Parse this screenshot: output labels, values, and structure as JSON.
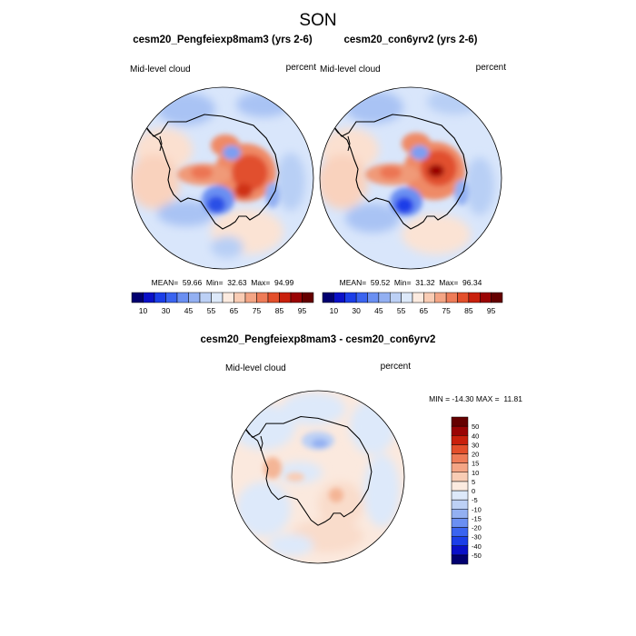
{
  "figure": {
    "season": "SON",
    "variable": "Mid-level cloud",
    "units": "percent"
  },
  "chart_data": [
    {
      "type": "heatmap",
      "projection": "south-polar-stereographic",
      "title": "cesm20_Pengfeiexp8mam3 (yrs 2-6)",
      "left_label": "Mid-level cloud",
      "right_label": "percent",
      "stats": {
        "mean": "59.66",
        "min": "32.63",
        "max": "94.99"
      },
      "stats_text": "MEAN=  59.66  Min=  32.63  Max=  94.99"
    },
    {
      "type": "heatmap",
      "projection": "south-polar-stereographic",
      "title": "cesm20_con6yrv2 (yrs 2-6)",
      "left_label": "Mid-level cloud",
      "right_label": "percent",
      "stats": {
        "mean": "59.52",
        "min": "31.32",
        "max": "96.34"
      },
      "stats_text": "MEAN=  59.52  Min=  31.32  Max=  96.34"
    },
    {
      "type": "heatmap",
      "projection": "south-polar-stereographic",
      "title": "cesm20_Pengfeiexp8mam3 - cesm20_con6yrv2",
      "left_label": "Mid-level cloud",
      "right_label": "percent",
      "stats": {
        "min": "-14.30",
        "max": "11.81"
      },
      "stats_text": "MIN = -14.30 MAX =  11.81"
    }
  ],
  "colorbars": {
    "absolute": {
      "orientation": "horizontal",
      "colors": [
        "#020070",
        "#0a10c8",
        "#1b3ee8",
        "#3a64f0",
        "#6a8ff2",
        "#93b0f2",
        "#bcd0f5",
        "#dde9fa",
        "#fcebe0",
        "#f9ccb4",
        "#f4a585",
        "#ee7c58",
        "#e34f2b",
        "#c9200c",
        "#9a0404",
        "#650000"
      ],
      "ticks": [
        "10",
        "30",
        "45",
        "55",
        "65",
        "75",
        "85",
        "95"
      ]
    },
    "difference": {
      "orientation": "vertical",
      "colors": [
        "#020070",
        "#0a10c8",
        "#1b3ee8",
        "#3a64f0",
        "#6a8ff2",
        "#93b0f2",
        "#bcd0f5",
        "#dde9fa",
        "#fcebe0",
        "#f9ccb4",
        "#f4a585",
        "#ee7c58",
        "#e34f2b",
        "#c9200c",
        "#9a0404",
        "#650000"
      ],
      "ticks": [
        "-50",
        "-40",
        "-30",
        "-20",
        "-15",
        "-10",
        "-5",
        "0",
        "5",
        "10",
        "15",
        "20",
        "30",
        "40",
        "50"
      ]
    }
  }
}
